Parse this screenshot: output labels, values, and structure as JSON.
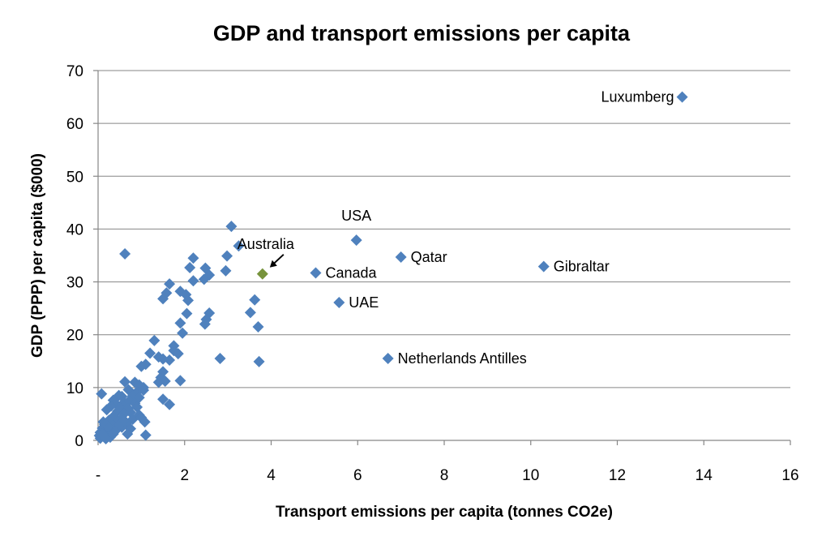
{
  "chart_data": {
    "type": "scatter",
    "title": "GDP and transport emissions per capita",
    "xlabel": "Transport emissions per capita (tonnes CO2e)",
    "ylabel": "GDP (PPP) per capita ($000)",
    "xlim": [
      0,
      16
    ],
    "ylim": [
      0,
      70
    ],
    "xticks": [
      0,
      2,
      4,
      6,
      8,
      10,
      12,
      14,
      16
    ],
    "xtick_labels": [
      "-",
      "2",
      "4",
      "6",
      "8",
      "10",
      "12",
      "14",
      "16"
    ],
    "yticks": [
      0,
      10,
      20,
      30,
      40,
      50,
      60,
      70
    ],
    "ytick_labels": [
      "0",
      "10",
      "20",
      "30",
      "40",
      "50",
      "60",
      "70"
    ],
    "grid": "horizontal",
    "legend": "none",
    "colors": {
      "default": "#4F81BD",
      "highlight": "#77933C"
    },
    "highlighted": {
      "name": "Australia",
      "x": 3.8,
      "y": 31.5
    },
    "labeled_points": [
      {
        "name": "Luxumberg",
        "x": 13.5,
        "y": 65.0,
        "label_side": "left"
      },
      {
        "name": "USA",
        "x": 5.97,
        "y": 37.9,
        "label_side": "above"
      },
      {
        "name": "Qatar",
        "x": 7.0,
        "y": 34.7,
        "label_side": "right"
      },
      {
        "name": "Gibraltar",
        "x": 10.3,
        "y": 32.9,
        "label_side": "right"
      },
      {
        "name": "Canada",
        "x": 5.03,
        "y": 31.7,
        "label_side": "right"
      },
      {
        "name": "UAE",
        "x": 5.57,
        "y": 26.1,
        "label_side": "right"
      },
      {
        "name": "Netherlands Antilles",
        "x": 6.7,
        "y": 15.5,
        "label_side": "right"
      }
    ],
    "annotation": {
      "text": "Australia",
      "arrow": true
    },
    "points": [
      [
        0.62,
        35.3
      ],
      [
        3.08,
        40.5
      ],
      [
        3.25,
        36.8
      ],
      [
        2.98,
        34.9
      ],
      [
        2.2,
        34.5
      ],
      [
        2.48,
        32.6
      ],
      [
        2.12,
        32.7
      ],
      [
        2.95,
        32.1
      ],
      [
        2.57,
        31.3
      ],
      [
        2.45,
        30.5
      ],
      [
        2.2,
        30.2
      ],
      [
        1.65,
        29.6
      ],
      [
        1.9,
        28.2
      ],
      [
        2.03,
        27.6
      ],
      [
        1.58,
        27.9
      ],
      [
        1.5,
        26.8
      ],
      [
        2.08,
        26.5
      ],
      [
        3.62,
        26.6
      ],
      [
        2.57,
        24.1
      ],
      [
        2.05,
        24.0
      ],
      [
        3.52,
        24.2
      ],
      [
        2.5,
        22.9
      ],
      [
        2.47,
        22.0
      ],
      [
        1.9,
        22.2
      ],
      [
        3.7,
        21.5
      ],
      [
        1.95,
        20.3
      ],
      [
        2.82,
        15.5
      ],
      [
        3.72,
        14.9
      ],
      [
        1.3,
        18.9
      ],
      [
        1.75,
        17.9
      ],
      [
        1.75,
        17.0
      ],
      [
        1.85,
        16.4
      ],
      [
        1.2,
        16.5
      ],
      [
        1.4,
        15.8
      ],
      [
        1.65,
        15.2
      ],
      [
        1.5,
        15.4
      ],
      [
        1.1,
        14.4
      ],
      [
        1.0,
        14.0
      ],
      [
        1.5,
        13.0
      ],
      [
        1.45,
        11.9
      ],
      [
        1.55,
        11.2
      ],
      [
        1.4,
        11.0
      ],
      [
        1.9,
        11.3
      ],
      [
        0.62,
        11.1
      ],
      [
        0.85,
        11.0
      ],
      [
        0.95,
        10.5
      ],
      [
        1.05,
        10.0
      ],
      [
        0.7,
        9.6
      ],
      [
        0.9,
        9.2
      ],
      [
        1.05,
        9.5
      ],
      [
        0.08,
        8.8
      ],
      [
        0.48,
        8.5
      ],
      [
        0.55,
        8.3
      ],
      [
        0.8,
        8.4
      ],
      [
        0.95,
        8.1
      ],
      [
        1.5,
        7.8
      ],
      [
        1.65,
        6.8
      ],
      [
        0.35,
        7.6
      ],
      [
        0.4,
        7.0
      ],
      [
        0.6,
        7.2
      ],
      [
        0.72,
        7.5
      ],
      [
        0.85,
        7.0
      ],
      [
        0.3,
        6.5
      ],
      [
        0.5,
        6.2
      ],
      [
        0.7,
        6.0
      ],
      [
        0.9,
        6.3
      ],
      [
        0.2,
        5.8
      ],
      [
        0.45,
        5.5
      ],
      [
        0.6,
        5.0
      ],
      [
        0.75,
        5.3
      ],
      [
        0.95,
        4.8
      ],
      [
        0.35,
        4.5
      ],
      [
        0.55,
        4.2
      ],
      [
        0.8,
        4.0
      ],
      [
        1.0,
        4.3
      ],
      [
        0.25,
        3.8
      ],
      [
        0.45,
        3.5
      ],
      [
        0.65,
        3.2
      ],
      [
        1.08,
        3.5
      ],
      [
        0.15,
        3.0
      ],
      [
        0.35,
        2.8
      ],
      [
        0.55,
        2.5
      ],
      [
        0.75,
        2.2
      ],
      [
        0.1,
        2.3
      ],
      [
        0.25,
        2.0
      ],
      [
        0.4,
        1.8
      ],
      [
        0.05,
        1.5
      ],
      [
        0.2,
        1.4
      ],
      [
        0.35,
        1.2
      ],
      [
        0.03,
        0.9
      ],
      [
        0.15,
        0.8
      ],
      [
        0.28,
        0.6
      ],
      [
        0.05,
        0.4
      ],
      [
        0.18,
        0.3
      ],
      [
        0.68,
        1.2
      ],
      [
        1.1,
        1.0
      ],
      [
        0.1,
        1.2
      ],
      [
        0.22,
        2.6
      ],
      [
        0.5,
        3.0
      ],
      [
        0.12,
        3.5
      ],
      [
        0.6,
        3.8
      ]
    ]
  }
}
